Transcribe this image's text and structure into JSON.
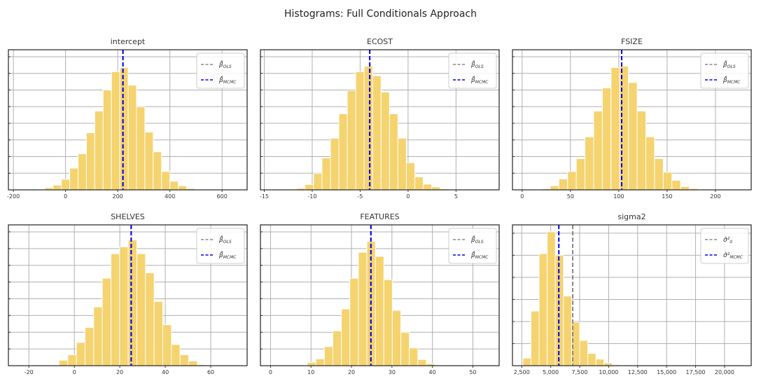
{
  "chart_data": {
    "title": "Histograms: Full Conditionals Approach",
    "bar_color": "#f5d36f",
    "ols_color": "#888888",
    "mcmc_color": "#0000ee",
    "panels": [
      {
        "type": "bar",
        "title": "intercept",
        "xlim": [
          -219,
          696
        ],
        "xticks": [
          -200,
          0,
          200,
          400,
          600
        ],
        "xtick_labels": [
          "-200",
          "0",
          "200",
          "400",
          "600"
        ],
        "bin_width": 32,
        "bin_start": -112,
        "relative_heights": [
          0.005,
          0.015,
          0.035,
          0.078,
          0.16,
          0.265,
          0.42,
          0.58,
          0.735,
          0.87,
          0.9,
          0.77,
          0.61,
          0.425,
          0.28,
          0.135,
          0.063,
          0.03,
          0.01,
          0.003
        ],
        "ols_value": 220,
        "mcmc_value": 220,
        "legend": [
          "β̂ OLS",
          "β̂ MCMC"
        ],
        "legend_position": "upper right",
        "grid": true
      },
      {
        "type": "bar",
        "title": "ECOST",
        "xlim": [
          -15.4,
          9.5
        ],
        "xticks": [
          -15,
          -10,
          -5,
          0,
          5
        ],
        "xtick_labels": [
          "-15",
          "-10",
          "-5",
          "0",
          "5"
        ],
        "bin_width": 0.88,
        "bin_start": -12.5,
        "relative_heights": [
          0.006,
          0.012,
          0.04,
          0.12,
          0.235,
          0.38,
          0.56,
          0.73,
          0.87,
          0.91,
          0.84,
          0.72,
          0.56,
          0.38,
          0.2,
          0.095,
          0.042,
          0.022,
          0.008,
          0.002
        ],
        "ols_value": -4.0,
        "mcmc_value": -4.0,
        "legend": [
          "β̂ OLS",
          "β̂ MCMC"
        ],
        "legend_position": "upper right",
        "grid": true
      },
      {
        "type": "bar",
        "title": "FSIZE",
        "xlim": [
          -10,
          237
        ],
        "xticks": [
          0,
          50,
          100,
          150,
          200
        ],
        "xtick_labels": [
          "0",
          "50",
          "100",
          "150",
          "200"
        ],
        "bin_width": 9,
        "bin_start": 20,
        "relative_heights": [
          0.008,
          0.03,
          0.08,
          0.135,
          0.23,
          0.39,
          0.58,
          0.75,
          0.9,
          0.91,
          0.79,
          0.58,
          0.39,
          0.23,
          0.13,
          0.07,
          0.025,
          0.01,
          0.004
        ],
        "ols_value": 103,
        "mcmc_value": 103,
        "legend": [
          "β̂ OLS",
          "β̂ MCMC"
        ],
        "legend_position": "upper right",
        "grid": true
      },
      {
        "type": "bar",
        "title": "SHELVES",
        "xlim": [
          -29,
          76
        ],
        "xticks": [
          -20,
          0,
          20,
          40,
          60
        ],
        "xtick_labels": [
          "-20",
          "0",
          "20",
          "40",
          "60"
        ],
        "bin_width": 3.8,
        "bin_start": -10.5,
        "relative_heights": [
          0.003,
          0.04,
          0.08,
          0.17,
          0.28,
          0.43,
          0.64,
          0.82,
          0.87,
          0.92,
          0.82,
          0.68,
          0.47,
          0.3,
          0.155,
          0.08,
          0.035,
          0.008
        ],
        "ols_value": 25,
        "mcmc_value": 25,
        "legend": [
          "β̂ OLS",
          "β̂ MCMC"
        ],
        "legend_position": "upper right",
        "grid": true
      },
      {
        "type": "bar",
        "title": "FEATURES",
        "xlim": [
          -2.5,
          56.5
        ],
        "xticks": [
          0,
          10,
          20,
          30,
          40,
          50
        ],
        "xtick_labels": [
          "0",
          "10",
          "20",
          "30",
          "40",
          "50"
        ],
        "bin_width": 2.1,
        "bin_start": 7,
        "relative_heights": [
          0.004,
          0.025,
          0.05,
          0.14,
          0.255,
          0.415,
          0.64,
          0.83,
          0.91,
          0.8,
          0.63,
          0.405,
          0.245,
          0.13,
          0.045,
          0.015,
          0.003
        ],
        "ols_value": 24.8,
        "mcmc_value": 24.8,
        "legend": [
          "β̂ OLS",
          "β̂ MCMC"
        ],
        "legend_position": "upper right",
        "grid": true
      },
      {
        "type": "bar",
        "title": "sigma2",
        "xlim": [
          1700,
          22300
        ],
        "xticks": [
          2500,
          5000,
          7500,
          10000,
          12500,
          15000,
          17500,
          20000
        ],
        "xtick_labels": [
          "2,500",
          "5,000",
          "7,500",
          "10,000",
          "12,500",
          "15,000",
          "17,500",
          "20,000"
        ],
        "bin_width": 700,
        "bin_start": 2600,
        "relative_heights": [
          0.055,
          0.4,
          0.82,
          0.98,
          0.81,
          0.51,
          0.32,
          0.185,
          0.09,
          0.048,
          0.02,
          0.007,
          0.005
        ],
        "ols_value": 6900,
        "mcmc_value": 5700,
        "legend": [
          "σ̂² 0",
          "σ̂² MCMC"
        ],
        "legend_position": "upper right",
        "grid": true
      }
    ]
  }
}
